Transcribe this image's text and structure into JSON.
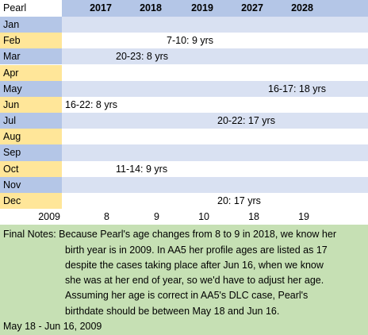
{
  "header": {
    "corner": "Pearl",
    "years": [
      "2017",
      "2018",
      "2019",
      "2027",
      "2028"
    ]
  },
  "rows": [
    {
      "month": "Jan",
      "note": null
    },
    {
      "month": "Feb",
      "note": "7-10: 9 yrs"
    },
    {
      "month": "Mar",
      "note": "20-23: 8 yrs"
    },
    {
      "month": "Apr",
      "note": null
    },
    {
      "month": "May",
      "note": "16-17: 18 yrs"
    },
    {
      "month": "Jun",
      "note": "16-22: 8 yrs"
    },
    {
      "month": "Jul",
      "note": "20-22: 17 yrs"
    },
    {
      "month": "Aug",
      "note": null
    },
    {
      "month": "Sep",
      "note": null
    },
    {
      "month": "Oct",
      "note": "11-14: 9 yrs"
    },
    {
      "month": "Nov",
      "note": null
    },
    {
      "month": "Dec",
      "note": "20: 17 yrs"
    }
  ],
  "footer": {
    "birth_year": "2009",
    "ages": [
      "8",
      "9",
      "10",
      "18",
      "19"
    ]
  },
  "notes": {
    "lines": [
      "Final Notes: Because Pearl's age changes from 8 to 9 in 2018, we know her",
      "birth year is in 2009. In AA5 her profile ages are listed as 17",
      "despite the cases taking place after Jun 16, when we know",
      "she was at her end of year, so we'd have to adjust her age.",
      "Assuming her age is correct in AA5's DLC case, Pearl's",
      "birthdate should be between May 18 and Jun 16."
    ],
    "answer": "May 18 - Jun 16, 2009"
  }
}
